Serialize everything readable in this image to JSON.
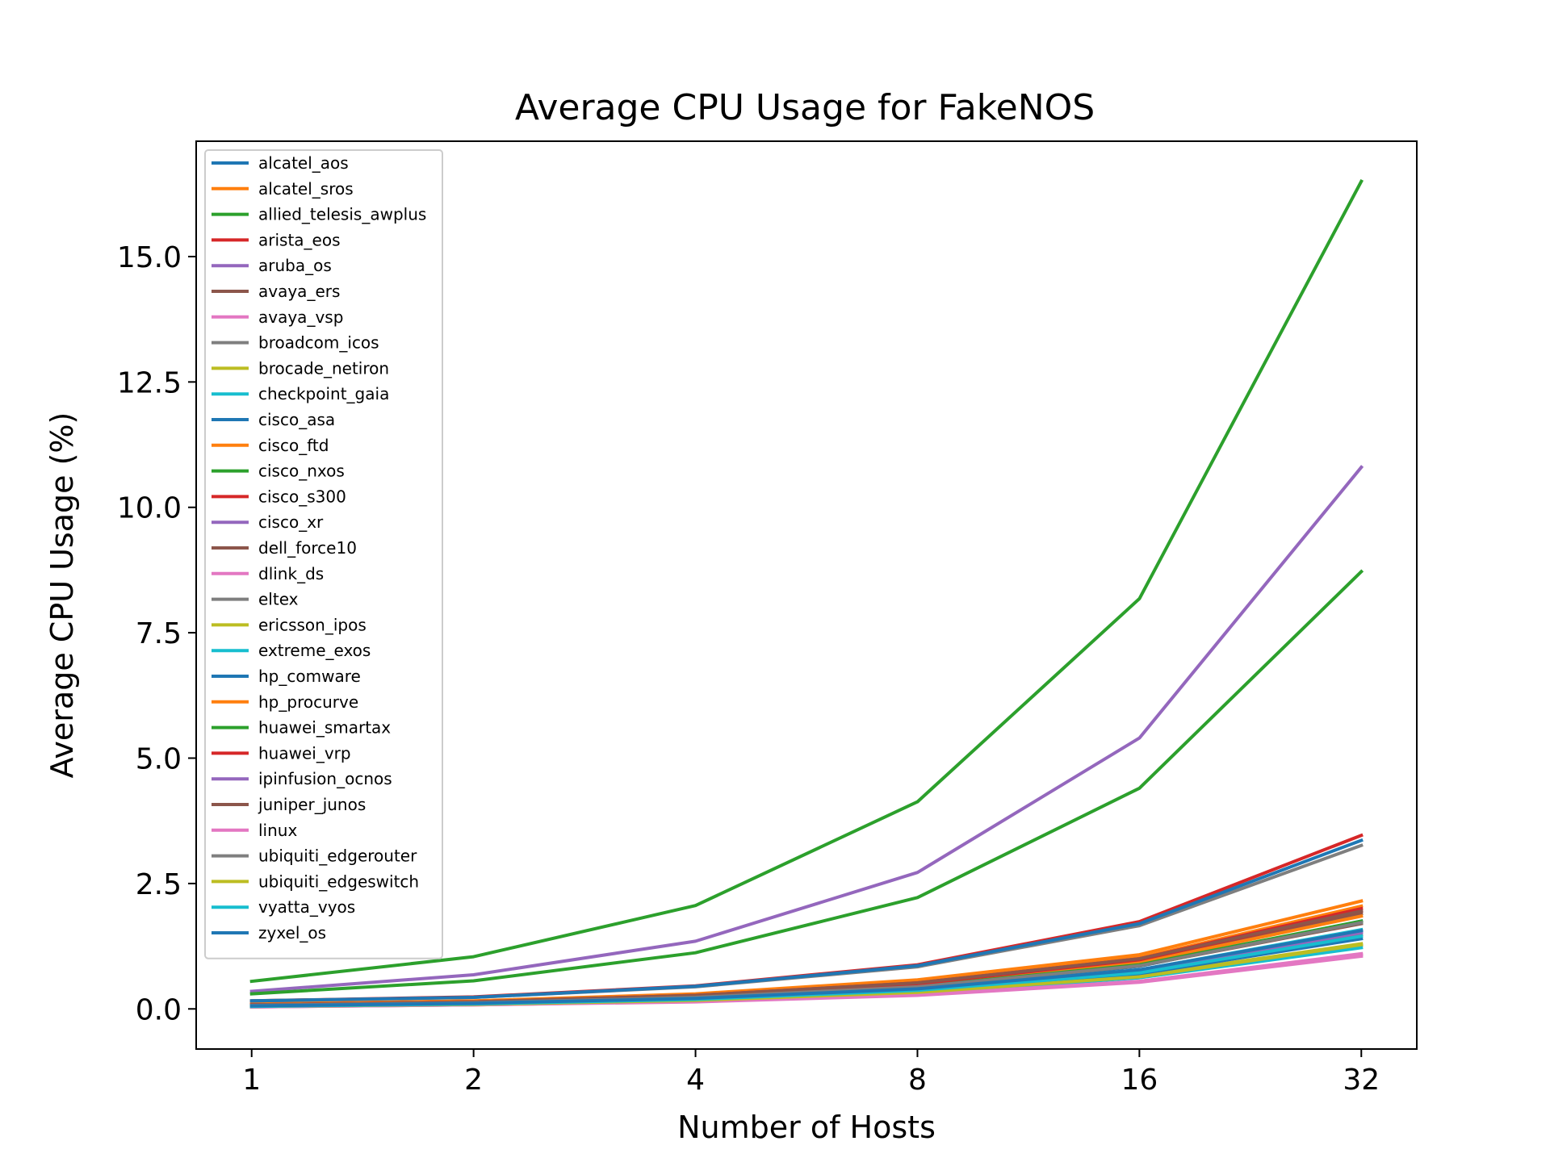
{
  "chart_data": {
    "type": "line",
    "title": "Average CPU Usage for FakeNOS",
    "xlabel": "Number of Hosts",
    "ylabel": "Average CPU Usage (%)",
    "x": [
      1,
      2,
      4,
      8,
      16,
      32
    ],
    "x_tick_labels": [
      "1",
      "2",
      "4",
      "8",
      "16",
      "32"
    ],
    "x_scale": "log2",
    "y_ticks": [
      0.0,
      2.5,
      5.0,
      7.5,
      10.0,
      12.5,
      15.0
    ],
    "y_tick_labels": [
      "0.0",
      "2.5",
      "5.0",
      "7.5",
      "10.0",
      "12.5",
      "15.0"
    ],
    "ylim": [
      -0.8,
      17.3
    ],
    "grid": false,
    "legend_position": "upper-left",
    "series": [
      {
        "name": "alcatel_aos",
        "color": "#1f77b4",
        "values": [
          0.06,
          0.12,
          0.22,
          0.4,
          0.85,
          1.75
        ]
      },
      {
        "name": "alcatel_sros",
        "color": "#ff7f0e",
        "values": [
          0.1,
          0.16,
          0.3,
          0.58,
          1.08,
          2.15
        ]
      },
      {
        "name": "allied_telesis_awplus",
        "color": "#2ca02c",
        "values": [
          0.55,
          1.04,
          2.06,
          4.13,
          8.18,
          16.5
        ]
      },
      {
        "name": "arista_eos",
        "color": "#d62728",
        "values": [
          0.16,
          0.24,
          0.46,
          0.88,
          1.74,
          3.46
        ]
      },
      {
        "name": "aruba_os",
        "color": "#9467bd",
        "values": [
          0.35,
          0.68,
          1.35,
          2.72,
          5.4,
          10.8
        ]
      },
      {
        "name": "avaya_ers",
        "color": "#8c564b",
        "values": [
          0.08,
          0.14,
          0.26,
          0.5,
          0.96,
          1.9
        ]
      },
      {
        "name": "avaya_vsp",
        "color": "#e377c2",
        "values": [
          0.04,
          0.08,
          0.15,
          0.28,
          0.55,
          1.08
        ]
      },
      {
        "name": "broadcom_icos",
        "color": "#7f7f7f",
        "values": [
          0.16,
          0.23,
          0.44,
          0.84,
          1.66,
          3.26
        ]
      },
      {
        "name": "brocade_netiron",
        "color": "#bcbd22",
        "values": [
          0.05,
          0.09,
          0.17,
          0.32,
          0.64,
          1.27
        ]
      },
      {
        "name": "checkpoint_gaia",
        "color": "#17becf",
        "values": [
          0.05,
          0.09,
          0.17,
          0.31,
          0.62,
          1.22
        ]
      },
      {
        "name": "cisco_asa",
        "color": "#1f77b4",
        "values": [
          0.16,
          0.23,
          0.45,
          0.86,
          1.7,
          3.36
        ]
      },
      {
        "name": "cisco_ftd",
        "color": "#ff7f0e",
        "values": [
          0.09,
          0.15,
          0.28,
          0.55,
          1.02,
          2.05
        ]
      },
      {
        "name": "cisco_nxos",
        "color": "#2ca02c",
        "values": [
          0.3,
          0.56,
          1.12,
          2.22,
          4.4,
          8.72
        ]
      },
      {
        "name": "cisco_s300",
        "color": "#d62728",
        "values": [
          0.08,
          0.14,
          0.27,
          0.52,
          1.0,
          2.0
        ]
      },
      {
        "name": "cisco_xr",
        "color": "#9467bd",
        "values": [
          0.06,
          0.11,
          0.21,
          0.4,
          0.78,
          1.55
        ]
      },
      {
        "name": "dell_force10",
        "color": "#8c564b",
        "values": [
          0.07,
          0.12,
          0.23,
          0.44,
          0.86,
          1.7
        ]
      },
      {
        "name": "dlink_ds",
        "color": "#e377c2",
        "values": [
          0.04,
          0.08,
          0.15,
          0.28,
          0.55,
          1.1
        ]
      },
      {
        "name": "eltex",
        "color": "#7f7f7f",
        "values": [
          0.06,
          0.11,
          0.2,
          0.38,
          0.74,
          1.48
        ]
      },
      {
        "name": "ericsson_ipos",
        "color": "#bcbd22",
        "values": [
          0.05,
          0.1,
          0.18,
          0.34,
          0.66,
          1.3
        ]
      },
      {
        "name": "extreme_exos",
        "color": "#17becf",
        "values": [
          0.06,
          0.11,
          0.21,
          0.4,
          0.78,
          1.58
        ]
      },
      {
        "name": "hp_comware",
        "color": "#1f77b4",
        "values": [
          0.05,
          0.1,
          0.19,
          0.36,
          0.7,
          1.4
        ]
      },
      {
        "name": "hp_procurve",
        "color": "#ff7f0e",
        "values": [
          0.07,
          0.13,
          0.25,
          0.48,
          0.92,
          1.85
        ]
      },
      {
        "name": "huawei_smartax",
        "color": "#2ca02c",
        "values": [
          0.07,
          0.12,
          0.23,
          0.45,
          0.88,
          1.75
        ]
      },
      {
        "name": "huawei_vrp",
        "color": "#d62728",
        "values": [
          0.08,
          0.14,
          0.26,
          0.5,
          0.98,
          1.95
        ]
      },
      {
        "name": "ipinfusion_ocnos",
        "color": "#9467bd",
        "values": [
          0.06,
          0.11,
          0.2,
          0.39,
          0.76,
          1.52
        ]
      },
      {
        "name": "juniper_junos",
        "color": "#8c564b",
        "values": [
          0.08,
          0.14,
          0.27,
          0.52,
          1.0,
          1.95
        ]
      },
      {
        "name": "linux",
        "color": "#e377c2",
        "values": [
          0.04,
          0.08,
          0.14,
          0.27,
          0.53,
          1.05
        ]
      },
      {
        "name": "ubiquiti_edgerouter",
        "color": "#7f7f7f",
        "values": [
          0.07,
          0.12,
          0.23,
          0.44,
          0.86,
          1.72
        ]
      },
      {
        "name": "ubiquiti_edgeswitch",
        "color": "#bcbd22",
        "values": [
          0.05,
          0.09,
          0.17,
          0.33,
          0.64,
          1.28
        ]
      },
      {
        "name": "vyatta_vyos",
        "color": "#17becf",
        "values": [
          0.05,
          0.1,
          0.19,
          0.37,
          0.72,
          1.45
        ]
      },
      {
        "name": "zyxel_os",
        "color": "#1f77b4",
        "values": [
          0.06,
          0.11,
          0.21,
          0.4,
          0.78,
          1.56
        ]
      }
    ]
  }
}
